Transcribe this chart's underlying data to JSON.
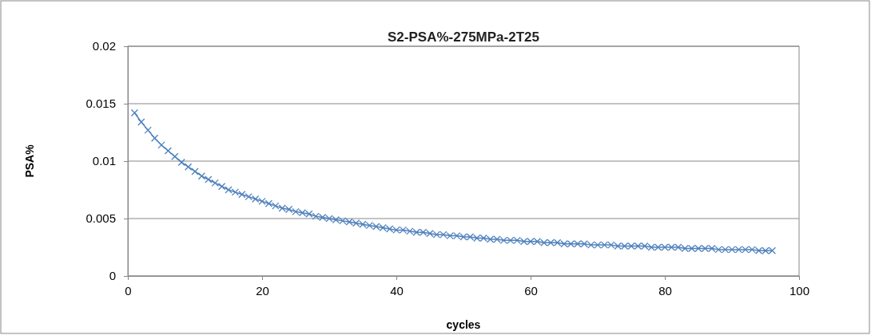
{
  "chart_data": {
    "type": "line",
    "title": "S2-PSA%-275MPa-2T25",
    "xlabel": "cycles",
    "ylabel": "PSA%",
    "x": [
      1,
      2,
      3,
      4,
      5,
      6,
      7,
      8,
      9,
      10,
      11,
      12,
      13,
      14,
      15,
      16,
      17,
      18,
      19,
      20,
      21,
      22,
      23,
      24,
      25,
      26,
      27,
      28,
      29,
      30,
      31,
      32,
      33,
      34,
      35,
      36,
      37,
      38,
      39,
      40,
      41,
      42,
      43,
      44,
      45,
      46,
      47,
      48,
      49,
      50,
      51,
      52,
      53,
      54,
      55,
      56,
      57,
      58,
      59,
      60,
      61,
      62,
      63,
      64,
      65,
      66,
      67,
      68,
      69,
      70,
      71,
      72,
      73,
      74,
      75,
      76,
      77,
      78,
      79,
      80,
      81,
      82,
      83,
      84,
      85,
      86,
      87,
      88,
      89,
      90,
      91,
      92,
      93,
      94,
      95,
      96
    ],
    "series": [
      {
        "color": "#4f81bd",
        "values": [
          0.0142,
          0.0134,
          0.0127,
          0.012,
          0.0114,
          0.0109,
          0.0104,
          0.0099,
          0.0095,
          0.0091,
          0.0087,
          0.0084,
          0.0081,
          0.0078,
          0.0075,
          0.0073,
          0.0071,
          0.0069,
          0.0067,
          0.0065,
          0.0063,
          0.0061,
          0.0059,
          0.0058,
          0.0056,
          0.0055,
          0.0054,
          0.0052,
          0.0051,
          0.005,
          0.0049,
          0.0048,
          0.0047,
          0.0046,
          0.0045,
          0.0044,
          0.0043,
          0.0042,
          0.0041,
          0.004,
          0.004,
          0.0039,
          0.0038,
          0.0038,
          0.0037,
          0.0036,
          0.0036,
          0.0035,
          0.0035,
          0.0034,
          0.0034,
          0.0033,
          0.0033,
          0.0032,
          0.0032,
          0.0031,
          0.0031,
          0.0031,
          0.003,
          0.003,
          0.003,
          0.0029,
          0.0029,
          0.0029,
          0.0028,
          0.0028,
          0.0028,
          0.0028,
          0.0027,
          0.0027,
          0.0027,
          0.0027,
          0.0026,
          0.0026,
          0.0026,
          0.0026,
          0.0026,
          0.0025,
          0.0025,
          0.0025,
          0.0025,
          0.0025,
          0.0024,
          0.0024,
          0.0024,
          0.0024,
          0.0024,
          0.0023,
          0.0023,
          0.0023,
          0.0023,
          0.0023,
          0.0023,
          0.0022,
          0.0022,
          0.0022
        ]
      }
    ],
    "xlim": [
      0,
      100
    ],
    "xticks": [
      0,
      20,
      40,
      60,
      80,
      100
    ],
    "ylim": [
      0,
      0.02
    ],
    "yticks": [
      0,
      0.005,
      0.01,
      0.015,
      0.02
    ],
    "grid": "y",
    "marker": "cross",
    "line_style": "solid"
  }
}
